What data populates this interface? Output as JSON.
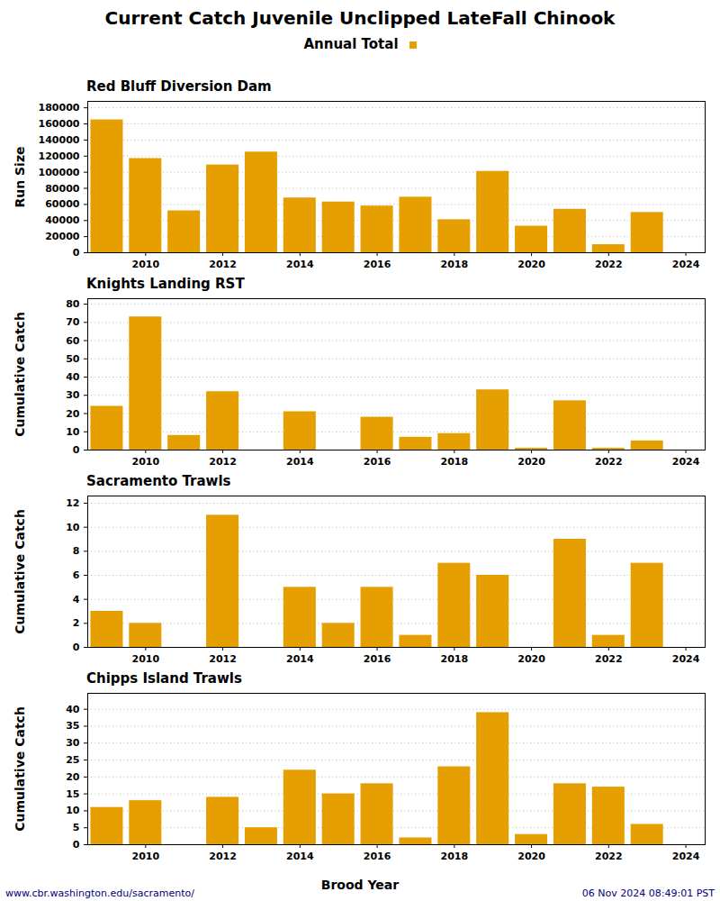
{
  "title": "Current Catch Juvenile Unclipped LateFall Chinook",
  "footer_left": "www.cbr.washington.edu/sacramento/",
  "footer_right": "06 Nov 2024 08:49:01 PST",
  "chart_data": [
    {
      "type": "bar",
      "title": "Red Bluff Diversion Dam",
      "y_label": "Run Size",
      "x": [
        2009,
        2010,
        2011,
        2012,
        2013,
        2014,
        2015,
        2016,
        2017,
        2018,
        2019,
        2020,
        2021,
        2022,
        2023
      ],
      "series": [
        {
          "name": "Annual Total",
          "color": "#E69F00",
          "values": [
            165000,
            117000,
            52000,
            109000,
            125000,
            68000,
            63000,
            58000,
            69000,
            41000,
            101000,
            33000,
            54000,
            10000,
            50000
          ]
        }
      ],
      "xlim": [
        2008.5,
        2024.5
      ],
      "xticks": [
        2010,
        2012,
        2014,
        2016,
        2018,
        2020,
        2022,
        2024
      ],
      "ylim": [
        0,
        188000
      ],
      "yticks": [
        0,
        20000,
        40000,
        60000,
        80000,
        100000,
        120000,
        140000,
        160000,
        180000
      ],
      "grid": true
    },
    {
      "type": "bar",
      "title": "Knights Landing RST",
      "y_label": "Cumulative Catch",
      "x": [
        2009,
        2010,
        2011,
        2012,
        2013,
        2014,
        2015,
        2016,
        2017,
        2018,
        2019,
        2020,
        2021,
        2022,
        2023
      ],
      "series": [
        {
          "name": "Annual Total",
          "color": "#E69F00",
          "values": [
            24,
            73,
            8,
            32,
            0,
            21,
            0,
            18,
            7,
            9,
            33,
            1,
            27,
            1,
            5
          ]
        }
      ],
      "xlim": [
        2008.5,
        2024.5
      ],
      "xticks": [
        2010,
        2012,
        2014,
        2016,
        2018,
        2020,
        2022,
        2024
      ],
      "ylim": [
        0,
        83
      ],
      "yticks": [
        0,
        10,
        20,
        30,
        40,
        50,
        60,
        70,
        80
      ],
      "grid": true
    },
    {
      "type": "bar",
      "title": "Sacramento Trawls",
      "y_label": "Cumulative Catch",
      "x": [
        2009,
        2010,
        2011,
        2012,
        2013,
        2014,
        2015,
        2016,
        2017,
        2018,
        2019,
        2020,
        2021,
        2022,
        2023
      ],
      "series": [
        {
          "name": "Annual Total",
          "color": "#E69F00",
          "values": [
            3,
            2,
            0,
            11,
            0,
            5,
            2,
            5,
            1,
            7,
            6,
            0,
            9,
            1,
            7
          ]
        }
      ],
      "xlim": [
        2008.5,
        2024.5
      ],
      "xticks": [
        2010,
        2012,
        2014,
        2016,
        2018,
        2020,
        2022,
        2024
      ],
      "ylim": [
        0,
        12.6
      ],
      "yticks": [
        0,
        2,
        4,
        6,
        8,
        10,
        12
      ],
      "grid": true
    },
    {
      "type": "bar",
      "title": "Chipps Island Trawls",
      "y_label": "Cumulative Catch",
      "x_label": "Brood Year",
      "x": [
        2009,
        2010,
        2011,
        2012,
        2013,
        2014,
        2015,
        2016,
        2017,
        2018,
        2019,
        2020,
        2021,
        2022,
        2023
      ],
      "series": [
        {
          "name": "Annual Total",
          "color": "#E69F00",
          "values": [
            11,
            13,
            0,
            14,
            5,
            22,
            15,
            18,
            2,
            23,
            39,
            3,
            18,
            17,
            6
          ]
        }
      ],
      "xlim": [
        2008.5,
        2024.5
      ],
      "xticks": [
        2010,
        2012,
        2014,
        2016,
        2018,
        2020,
        2022,
        2024
      ],
      "ylim": [
        0,
        44.7
      ],
      "yticks": [
        0,
        5,
        10,
        15,
        20,
        25,
        30,
        35,
        40
      ],
      "grid": true
    }
  ]
}
